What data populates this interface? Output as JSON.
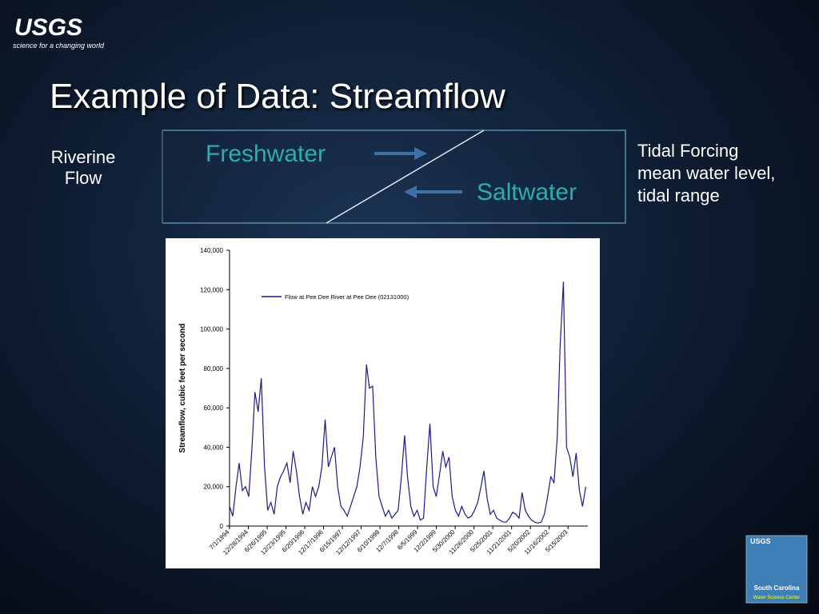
{
  "logo": {
    "name": "USGS",
    "tagline": "science for a changing world"
  },
  "title": "Example of Data: Streamflow",
  "diagram": {
    "left": "Riverine Flow",
    "freshwater": "Freshwater",
    "saltwater": "Saltwater",
    "right": "Tidal Forcing mean water level, tidal range"
  },
  "corner_logo": {
    "agency": "USGS",
    "state": "South Carolina",
    "center": "Water Science Center"
  },
  "chart_data": {
    "type": "line",
    "ylabel": "Streamflow, cubic feet per second",
    "xlim": [
      "7/1/1994",
      "11/21/2003"
    ],
    "xticks": [
      "7/1/1994",
      "12/28/1994",
      "6/26/1995",
      "12/23/1995",
      "6/20/1996",
      "12/17/1996",
      "6/15/1997",
      "12/12/1997",
      "6/10/1998",
      "12/7/1998",
      "6/5/1999",
      "12/2/1999",
      "5/30/2000",
      "11/26/2000",
      "5/25/2001",
      "11/21/2001",
      "5/20/2002",
      "11/16/2002",
      "5/15/2003"
    ],
    "ylim": [
      0,
      140000
    ],
    "yticks": [
      0,
      {
        "value": 20000,
        "label": "20,000"
      },
      {
        "value": 40000,
        "label": "40,000"
      },
      {
        "value": 60000,
        "label": "60,000"
      },
      {
        "value": 80000,
        "label": "80,000"
      },
      {
        "value": 100000,
        "label": "100,000"
      },
      {
        "value": 120000,
        "label": "120,000"
      },
      {
        "value": 140000,
        "label": "140,000"
      }
    ],
    "legend": "upper left",
    "x": [
      "7/1/1994",
      "8/1/1994",
      "9/1/1994",
      "10/1/1994",
      "11/1/1994",
      "12/1/1994",
      "1/1/1995",
      "2/1/1995",
      "3/1/1995",
      "4/1/1995",
      "5/1/1995",
      "6/1/1995",
      "7/1/1995",
      "8/1/1995",
      "9/1/1995",
      "10/1/1995",
      "11/1/1995",
      "12/1/1995",
      "1/1/1996",
      "2/1/1996",
      "3/1/1996",
      "4/1/1996",
      "5/1/1996",
      "6/1/1996",
      "7/1/1996",
      "8/1/1996",
      "9/1/1996",
      "10/1/1996",
      "11/1/1996",
      "12/1/1996",
      "1/1/1997",
      "2/1/1997",
      "3/1/1997",
      "4/1/1997",
      "5/1/1997",
      "6/1/1997",
      "7/1/1997",
      "8/1/1997",
      "9/1/1997",
      "10/1/1997",
      "11/1/1997",
      "12/1/1997",
      "1/1/1998",
      "2/1/1998",
      "3/1/1998",
      "4/1/1998",
      "5/1/1998",
      "6/1/1998",
      "7/1/1998",
      "8/1/1998",
      "9/1/1998",
      "10/1/1998",
      "11/1/1998",
      "12/1/1998",
      "1/1/1999",
      "2/1/1999",
      "3/1/1999",
      "4/1/1999",
      "5/1/1999",
      "6/1/1999",
      "7/1/1999",
      "8/1/1999",
      "9/1/1999",
      "10/1/1999",
      "11/1/1999",
      "12/1/1999",
      "1/1/2000",
      "2/1/2000",
      "3/1/2000",
      "4/1/2000",
      "5/1/2000",
      "6/1/2000",
      "7/1/2000",
      "8/1/2000",
      "9/1/2000",
      "10/1/2000",
      "11/1/2000",
      "12/1/2000",
      "1/1/2001",
      "2/1/2001",
      "3/1/2001",
      "4/1/2001",
      "5/1/2001",
      "6/1/2001",
      "7/1/2001",
      "8/1/2001",
      "9/1/2001",
      "10/1/2001",
      "11/1/2001",
      "12/1/2001",
      "1/1/2002",
      "2/1/2002",
      "3/1/2002",
      "4/1/2002",
      "5/1/2002",
      "6/1/2002",
      "7/1/2002",
      "8/1/2002",
      "9/1/2002",
      "10/1/2002",
      "11/1/2002",
      "12/1/2002",
      "1/1/2003",
      "2/1/2003",
      "3/1/2003",
      "4/1/2003",
      "5/1/2003",
      "6/1/2003",
      "7/1/2003",
      "8/1/2003",
      "9/1/2003",
      "10/1/2003",
      "11/1/2003"
    ],
    "series": [
      {
        "name": "Flow at Pee Dee River at Pee Dee (02131000)",
        "color": "#1a1a8c",
        "values": [
          10000,
          5000,
          20000,
          32000,
          18000,
          20000,
          15000,
          40000,
          68000,
          58000,
          75000,
          30000,
          8000,
          12000,
          6000,
          20000,
          25000,
          28000,
          32000,
          22000,
          38000,
          28000,
          15000,
          6000,
          12000,
          8000,
          20000,
          15000,
          20000,
          30000,
          54000,
          30000,
          35000,
          40000,
          20000,
          10000,
          8000,
          5000,
          10000,
          15000,
          20000,
          30000,
          45000,
          82000,
          70000,
          71000,
          35000,
          15000,
          10000,
          5000,
          8000,
          4000,
          6000,
          8000,
          25000,
          46000,
          25000,
          10000,
          5000,
          8000,
          3000,
          4000,
          30000,
          52000,
          20000,
          15000,
          26000,
          38000,
          30000,
          35000,
          15000,
          8000,
          5000,
          10000,
          6000,
          4000,
          5000,
          8000,
          12000,
          20000,
          28000,
          14000,
          6000,
          8000,
          4000,
          3000,
          2000,
          2000,
          4000,
          7000,
          6000,
          4000,
          17000,
          8000,
          5000,
          3000,
          2000,
          1500,
          2000,
          6000,
          15000,
          25000,
          22000,
          45000,
          92000,
          124000,
          40000,
          35000,
          25000,
          37000,
          18000,
          10000,
          20000
        ]
      }
    ]
  }
}
